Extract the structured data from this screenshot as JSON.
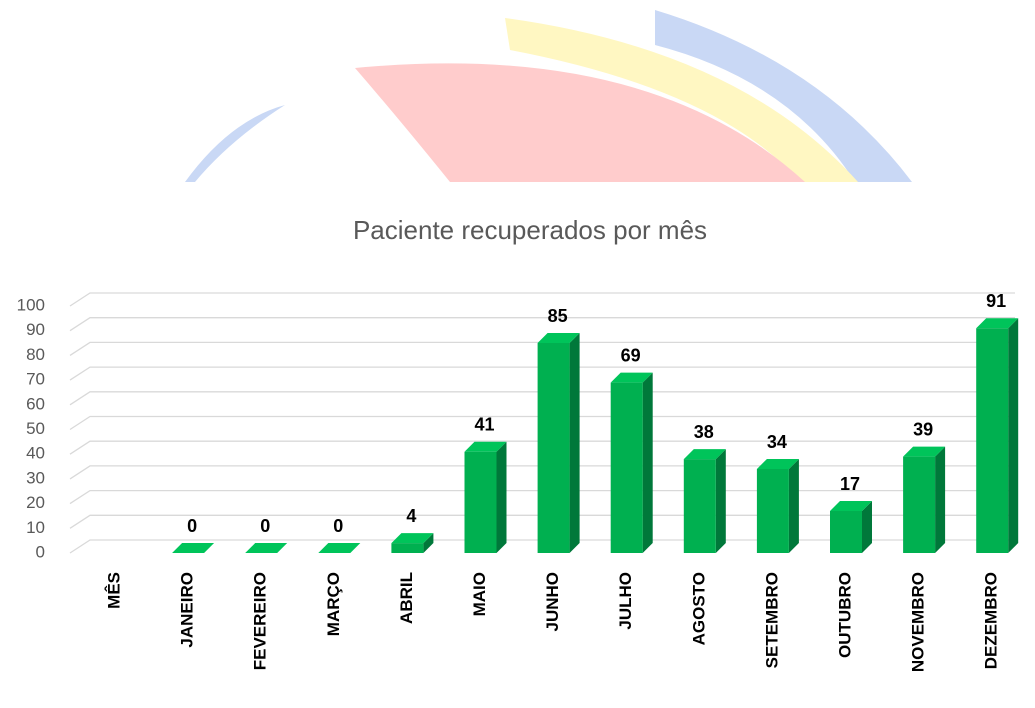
{
  "chart_data": {
    "type": "bar",
    "title": "Paciente recuperados por mês",
    "categories": [
      "MÊS",
      "JANEIRO",
      "FEVEREIRO",
      "MARÇO",
      "ABRIL",
      "MAIO",
      "JUNHO",
      "JULHO",
      "AGOSTO",
      "SETEMBRO",
      "OUTUBRO",
      "NOVEMBRO",
      "DEZEMBRO"
    ],
    "values": [
      null,
      0,
      0,
      0,
      4,
      41,
      85,
      69,
      38,
      34,
      17,
      39,
      91
    ],
    "color": "#00b050",
    "ylim": [
      0,
      100
    ],
    "yticks": [
      0,
      10,
      20,
      30,
      40,
      50,
      60,
      70,
      80,
      90,
      100
    ],
    "grid": true
  }
}
